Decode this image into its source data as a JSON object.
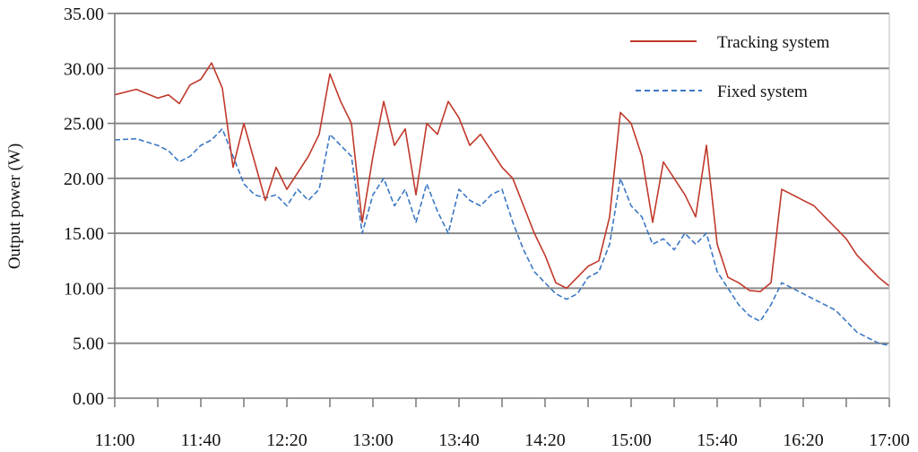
{
  "chart_data": {
    "type": "line",
    "ylabel": "Output power (W)",
    "xlabel": "",
    "ylim": [
      0,
      35
    ],
    "y_ticks": [
      "0.00",
      "5.00",
      "10.00",
      "15.00",
      "20.00",
      "25.00",
      "30.00",
      "35.00"
    ],
    "x_ticks": [
      "11:00",
      "11:40",
      "12:20",
      "13:00",
      "13:40",
      "14:20",
      "15:00",
      "15:40",
      "16:20",
      "17:00"
    ],
    "xlim": [
      "11:00",
      "17:00"
    ],
    "grid": "horizontal",
    "legend_position": "top-right",
    "series": [
      {
        "name": "Tracking system",
        "color": "#c0392b",
        "style": "solid",
        "x": [
          "11:00",
          "11:10",
          "11:20",
          "11:25",
          "11:30",
          "11:35",
          "11:40",
          "11:45",
          "11:50",
          "11:55",
          "12:00",
          "12:05",
          "12:10",
          "12:15",
          "12:20",
          "12:25",
          "12:30",
          "12:35",
          "12:40",
          "12:45",
          "12:50",
          "12:55",
          "13:00",
          "13:05",
          "13:10",
          "13:15",
          "13:20",
          "13:25",
          "13:30",
          "13:35",
          "13:40",
          "13:45",
          "13:50",
          "13:55",
          "14:00",
          "14:05",
          "14:10",
          "14:15",
          "14:20",
          "14:25",
          "14:30",
          "14:35",
          "14:40",
          "14:45",
          "14:50",
          "14:55",
          "15:00",
          "15:05",
          "15:10",
          "15:15",
          "15:20",
          "15:25",
          "15:30",
          "15:35",
          "15:40",
          "15:45",
          "15:50",
          "15:55",
          "16:00",
          "16:05",
          "16:10",
          "16:15",
          "16:20",
          "16:25",
          "16:30",
          "16:35",
          "16:40",
          "16:45",
          "16:50",
          "16:55",
          "17:00"
        ],
        "values": [
          27.6,
          28.1,
          27.3,
          27.6,
          26.8,
          28.5,
          29.0,
          30.5,
          28.2,
          21.0,
          25.0,
          21.5,
          18.0,
          21.0,
          19.0,
          20.5,
          22.0,
          24.0,
          29.5,
          27.0,
          25.0,
          16.0,
          22.0,
          27.0,
          23.0,
          24.5,
          18.5,
          25.0,
          24.0,
          27.0,
          25.5,
          23.0,
          24.0,
          22.5,
          21.0,
          20.0,
          17.5,
          15.0,
          13.0,
          10.5,
          10.0,
          11.0,
          12.0,
          12.5,
          16.5,
          26.0,
          25.0,
          22.0,
          16.0,
          21.5,
          20.0,
          18.5,
          16.5,
          23.0,
          14.0,
          11.0,
          10.5,
          9.8,
          9.7,
          10.5,
          19.0,
          18.5,
          18.0,
          17.5,
          16.5,
          15.5,
          14.5,
          13.0,
          12.0,
          11.0,
          10.2
        ]
      },
      {
        "name": "Fixed system",
        "color": "#3b78c4",
        "style": "dashed",
        "x": [
          "11:00",
          "11:10",
          "11:20",
          "11:25",
          "11:30",
          "11:35",
          "11:40",
          "11:45",
          "11:50",
          "11:55",
          "12:00",
          "12:05",
          "12:10",
          "12:15",
          "12:20",
          "12:25",
          "12:30",
          "12:35",
          "12:40",
          "12:45",
          "12:50",
          "12:55",
          "13:00",
          "13:05",
          "13:10",
          "13:15",
          "13:20",
          "13:25",
          "13:30",
          "13:35",
          "13:40",
          "13:45",
          "13:50",
          "13:55",
          "14:00",
          "14:05",
          "14:10",
          "14:15",
          "14:20",
          "14:25",
          "14:30",
          "14:35",
          "14:40",
          "14:45",
          "14:50",
          "14:55",
          "15:00",
          "15:05",
          "15:10",
          "15:15",
          "15:20",
          "15:25",
          "15:30",
          "15:35",
          "15:40",
          "15:45",
          "15:50",
          "15:55",
          "16:00",
          "16:05",
          "16:10",
          "16:15",
          "16:20",
          "16:25",
          "16:30",
          "16:35",
          "16:40",
          "16:45",
          "16:50",
          "16:55",
          "17:00"
        ],
        "values": [
          23.5,
          23.6,
          23.0,
          22.5,
          21.5,
          22.0,
          23.0,
          23.5,
          24.5,
          22.0,
          19.5,
          18.5,
          18.2,
          18.5,
          17.5,
          19.0,
          18.0,
          19.0,
          24.0,
          23.0,
          22.0,
          15.0,
          18.5,
          20.0,
          17.5,
          19.0,
          16.0,
          19.5,
          17.0,
          15.0,
          19.0,
          18.0,
          17.5,
          18.5,
          19.0,
          16.0,
          13.5,
          11.5,
          10.5,
          9.5,
          9.0,
          9.5,
          11.0,
          11.5,
          14.0,
          20.0,
          17.5,
          16.5,
          14.0,
          14.5,
          13.5,
          15.0,
          14.0,
          15.0,
          11.5,
          10.0,
          8.5,
          7.5,
          7.0,
          8.5,
          10.5,
          10.0,
          9.5,
          9.0,
          8.5,
          8.0,
          7.0,
          6.0,
          5.5,
          5.0,
          4.8
        ]
      }
    ]
  }
}
